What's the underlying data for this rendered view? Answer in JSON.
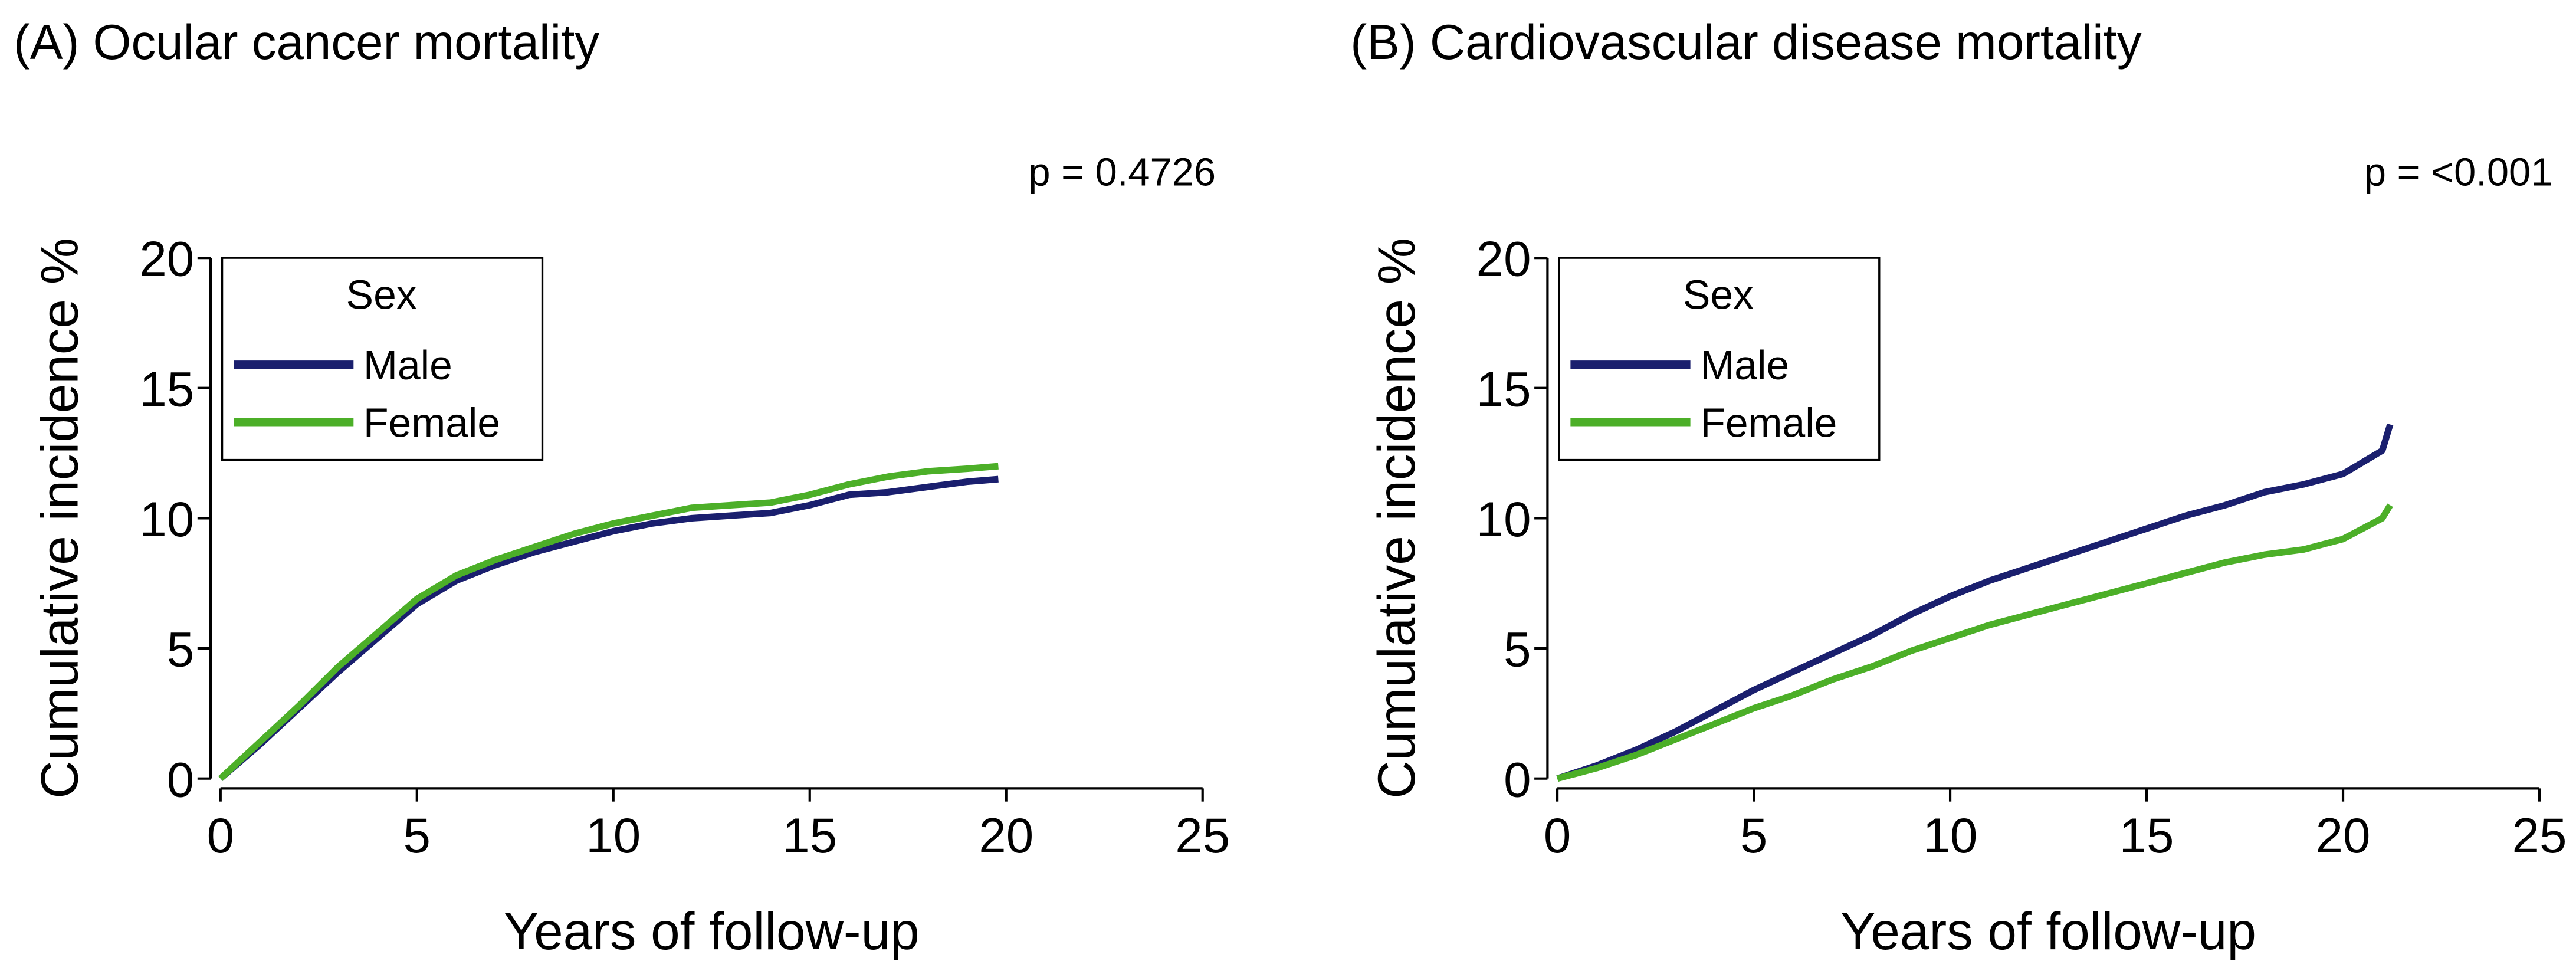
{
  "chart_data": [
    {
      "type": "line",
      "title": "(A) Ocular cancer mortality",
      "annotation": "p = 0.4726",
      "x_label": "Years of follow-up",
      "y_label": "Cumulative incidence %",
      "legend_title": "Sex",
      "legend": "upper left",
      "xlim": [
        0,
        25
      ],
      "ylim": [
        0,
        20
      ],
      "xticks": [
        0,
        5,
        10,
        15,
        20,
        25
      ],
      "yticks": [
        0,
        5,
        10,
        15,
        20
      ],
      "x": [
        0,
        1,
        2,
        3,
        4,
        5,
        6,
        7,
        8,
        9,
        10,
        11,
        12,
        13,
        14,
        15,
        16,
        17,
        18,
        19,
        19.8
      ],
      "series": [
        {
          "name": "Male",
          "color": "#1a1f6e",
          "values": [
            0,
            1.3,
            2.7,
            4.1,
            5.4,
            6.7,
            7.6,
            8.2,
            8.7,
            9.1,
            9.5,
            9.8,
            10.0,
            10.1,
            10.2,
            10.5,
            10.9,
            11.0,
            11.2,
            11.4,
            11.5
          ]
        },
        {
          "name": "Female",
          "color": "#4caf28",
          "values": [
            0,
            1.4,
            2.8,
            4.3,
            5.6,
            6.9,
            7.8,
            8.4,
            8.9,
            9.4,
            9.8,
            10.1,
            10.4,
            10.5,
            10.6,
            10.9,
            11.3,
            11.6,
            11.8,
            11.9,
            12.0
          ]
        }
      ]
    },
    {
      "type": "line",
      "title": "(B) Cardiovascular disease mortality",
      "annotation": "p = <0.001",
      "x_label": "Years of follow-up",
      "y_label": "Cumulative incidence %",
      "legend_title": "Sex",
      "legend": "upper left",
      "xlim": [
        0,
        25
      ],
      "ylim": [
        0,
        20
      ],
      "xticks": [
        0,
        5,
        10,
        15,
        20,
        25
      ],
      "yticks": [
        0,
        5,
        10,
        15,
        20
      ],
      "x": [
        0,
        1,
        2,
        3,
        4,
        5,
        6,
        7,
        8,
        9,
        10,
        11,
        12,
        13,
        14,
        15,
        16,
        17,
        18,
        19,
        20,
        21,
        21.2
      ],
      "series": [
        {
          "name": "Male",
          "color": "#1a1f6e",
          "values": [
            0,
            0.5,
            1.1,
            1.8,
            2.6,
            3.4,
            4.1,
            4.8,
            5.5,
            6.3,
            7.0,
            7.6,
            8.1,
            8.6,
            9.1,
            9.6,
            10.1,
            10.5,
            11.0,
            11.3,
            11.7,
            12.6,
            13.6
          ]
        },
        {
          "name": "Female",
          "color": "#4caf28",
          "values": [
            0,
            0.4,
            0.9,
            1.5,
            2.1,
            2.7,
            3.2,
            3.8,
            4.3,
            4.9,
            5.4,
            5.9,
            6.3,
            6.7,
            7.1,
            7.5,
            7.9,
            8.3,
            8.6,
            8.8,
            9.2,
            10.0,
            10.5
          ]
        }
      ]
    }
  ]
}
